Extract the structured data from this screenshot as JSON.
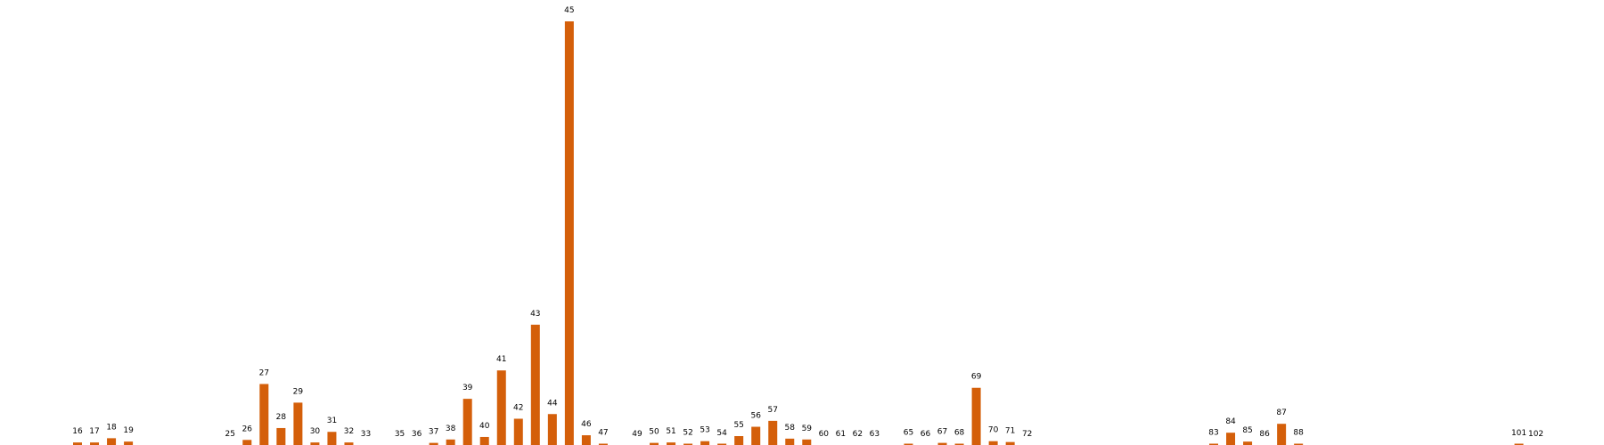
{
  "chart_data": {
    "type": "bar",
    "bar_color": "#d45f0a",
    "grid": false,
    "axes_visible": false,
    "ylim": [
      0,
      100
    ],
    "categories": [
      "16",
      "17",
      "18",
      "19",
      "25",
      "26",
      "27",
      "28",
      "29",
      "30",
      "31",
      "32",
      "33",
      "35",
      "36",
      "37",
      "38",
      "39",
      "40",
      "41",
      "42",
      "43",
      "44",
      "45",
      "46",
      "47",
      "49",
      "50",
      "51",
      "52",
      "53",
      "54",
      "55",
      "56",
      "57",
      "58",
      "59",
      "60",
      "61",
      "62",
      "63",
      "65",
      "66",
      "67",
      "68",
      "69",
      "70",
      "71",
      "72",
      "83",
      "84",
      "85",
      "86",
      "87",
      "88",
      "101",
      "102"
    ],
    "values": [
      0.6,
      0.6,
      1.6,
      0.8,
      0,
      1.2,
      14.4,
      4.0,
      10.0,
      0.6,
      3.1,
      0.6,
      0,
      0,
      0,
      0.5,
      1.3,
      10.9,
      1.9,
      17.6,
      6.2,
      28.4,
      7.3,
      100,
      2.3,
      0.3,
      0,
      0.5,
      0.6,
      0.3,
      0.9,
      0.2,
      2.1,
      4.3,
      5.7,
      1.5,
      1.3,
      0,
      0,
      0,
      0,
      0.3,
      0,
      0.5,
      0.3,
      13.5,
      0.9,
      0.7,
      0,
      0.3,
      2.9,
      0.8,
      0,
      5.0,
      0.3,
      0.2,
      0
    ],
    "data_labels": [
      "16",
      "17",
      "18",
      "19",
      "25",
      "26",
      "27",
      "28",
      "29",
      "30",
      "31",
      "32",
      "33",
      "35",
      "36",
      "37",
      "38",
      "39",
      "40",
      "41",
      "42",
      "43",
      "44",
      "45",
      "46",
      "47",
      "49",
      "50",
      "51",
      "52",
      "53",
      "54",
      "55",
      "56",
      "57",
      "58",
      "59",
      "60",
      "61",
      "62",
      "63",
      "65",
      "66",
      "67",
      "68",
      "69",
      "70",
      "71",
      "72",
      "83",
      "84",
      "85",
      "86",
      "87",
      "88",
      "101",
      "102"
    ]
  }
}
